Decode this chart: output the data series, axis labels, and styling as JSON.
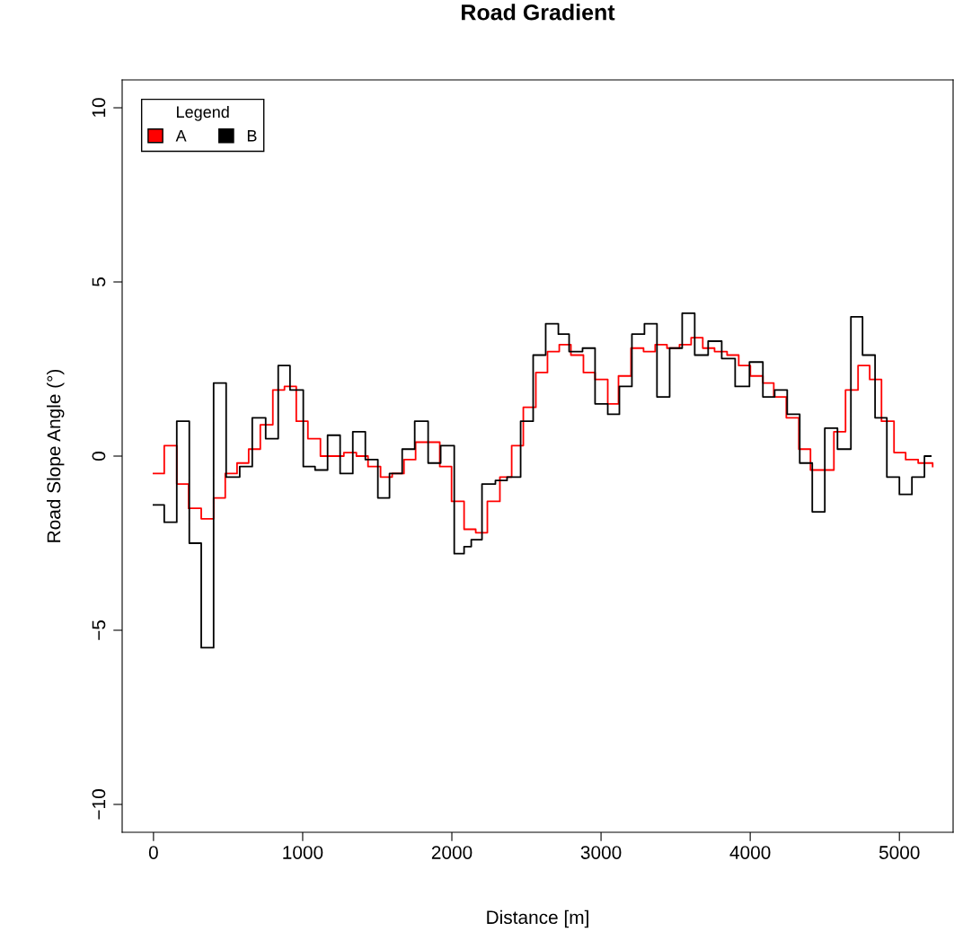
{
  "chart_data": {
    "type": "step",
    "title": "Road Gradient",
    "xlabel": "Distance [m]",
    "ylabel": "Road Slope Angle (°)",
    "xlim": [
      -210,
      5360
    ],
    "ylim": [
      -10.8,
      10.8
    ],
    "xticks": [
      0,
      1000,
      2000,
      3000,
      4000,
      5000
    ],
    "yticks": [
      -10,
      -5,
      0,
      5,
      10
    ],
    "grid": false,
    "legend": "top left",
    "legend_title": "Legend",
    "line_style": "solid",
    "marker": "none",
    "series": [
      {
        "name": "A",
        "color": "#ff0000",
        "x": [
          0,
          72,
          156,
          235,
          320,
          403,
          481,
          560,
          638,
          716,
          800,
          878,
          957,
          1035,
          1119,
          1276,
          1360,
          1438,
          1522,
          1600,
          1679,
          1757,
          1841,
          1919,
          1998,
          2082,
          2160,
          2238,
          2322,
          2401,
          2479,
          2563,
          2641,
          2720,
          2798,
          2882,
          2960,
          3045,
          3117,
          3201,
          3285,
          3363,
          3442,
          3526,
          3604,
          3682,
          3761,
          3845,
          3923,
          4001,
          4085,
          4158,
          4242,
          4326,
          4404,
          4561,
          4639,
          4723,
          4801,
          4880,
          4964,
          5042,
          5126,
          5223
        ],
        "values": [
          -0.5,
          0.3,
          -0.8,
          -1.5,
          -1.8,
          -1.2,
          -0.5,
          -0.2,
          0.2,
          0.9,
          1.9,
          2.0,
          1.0,
          0.5,
          0.0,
          0.1,
          0.0,
          -0.3,
          -0.6,
          -0.5,
          -0.1,
          0.4,
          0.4,
          -0.3,
          -1.3,
          -2.1,
          -2.2,
          -1.3,
          -0.6,
          0.3,
          1.4,
          2.4,
          3.0,
          3.2,
          2.9,
          2.4,
          2.2,
          1.5,
          2.3,
          3.1,
          3.0,
          3.2,
          3.1,
          3.2,
          3.4,
          3.1,
          3.0,
          2.9,
          2.6,
          2.3,
          2.1,
          1.7,
          1.1,
          0.2,
          -0.4,
          0.7,
          1.9,
          2.6,
          2.2,
          1.0,
          0.1,
          -0.1,
          -0.2,
          -0.3
        ]
      },
      {
        "name": "B",
        "color": "#000000",
        "x": [
          0,
          72,
          156,
          240,
          320,
          403,
          487,
          578,
          662,
          752,
          836,
          915,
          1004,
          1083,
          1167,
          1251,
          1336,
          1420,
          1504,
          1582,
          1667,
          1751,
          1841,
          1925,
          2016,
          2082,
          2130,
          2202,
          2292,
          2370,
          2461,
          2545,
          2629,
          2714,
          2786,
          2876,
          2960,
          3045,
          3123,
          3207,
          3291,
          3375,
          3460,
          3544,
          3628,
          3718,
          3809,
          3899,
          3995,
          4085,
          4164,
          4248,
          4332,
          4416,
          4500,
          4585,
          4675,
          4753,
          4837,
          4916,
          5000,
          5084,
          5168,
          5210
        ],
        "values": [
          -1.4,
          -1.9,
          1.0,
          -2.5,
          -5.5,
          2.1,
          -0.6,
          -0.3,
          1.1,
          0.5,
          2.6,
          1.9,
          -0.3,
          -0.4,
          0.6,
          -0.5,
          0.7,
          -0.1,
          -1.2,
          -0.5,
          0.2,
          1.0,
          -0.2,
          0.3,
          -2.8,
          -2.6,
          -2.4,
          -0.8,
          -0.7,
          -0.6,
          1.0,
          2.9,
          3.8,
          3.5,
          3.0,
          3.1,
          1.5,
          1.2,
          2.0,
          3.5,
          3.8,
          1.7,
          3.1,
          4.1,
          2.9,
          3.3,
          2.8,
          2.0,
          2.7,
          1.7,
          1.9,
          1.2,
          -0.2,
          -1.6,
          0.8,
          0.2,
          4.0,
          2.9,
          1.1,
          -0.6,
          -1.1,
          -0.6,
          0.0,
          0.0
        ]
      }
    ]
  }
}
